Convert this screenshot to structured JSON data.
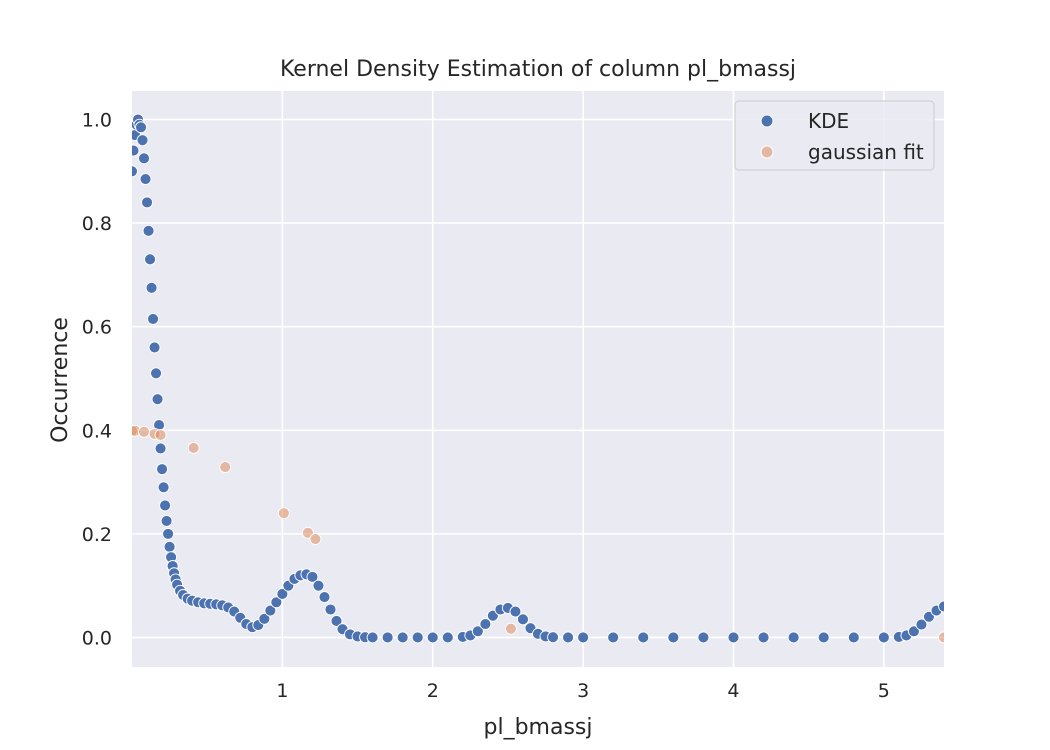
{
  "chart_data": {
    "type": "scatter",
    "title": "Kernel Density Estimation of column pl_bmassj",
    "xlabel": "pl_bmassj",
    "ylabel": "Occurrence",
    "xlim": [
      0,
      5.4
    ],
    "ylim": [
      -0.057,
      1.055
    ],
    "xticks": [
      1,
      2,
      3,
      4,
      5
    ],
    "yticks": [
      0.0,
      0.2,
      0.4,
      0.6,
      0.8,
      1.0
    ],
    "xtick_labels": [
      "1",
      "2",
      "3",
      "4",
      "5"
    ],
    "ytick_labels": [
      "0.0",
      "0.2",
      "0.4",
      "0.6",
      "0.8",
      "1.0"
    ],
    "grid": true,
    "legend_position": "top-right",
    "background_color": "#eaeaf2",
    "series": [
      {
        "name": "KDE",
        "color": "#4c72b0",
        "x": [
          0.0,
          0.01,
          0.02,
          0.03,
          0.04,
          0.05,
          0.06,
          0.07,
          0.08,
          0.09,
          0.1,
          0.11,
          0.12,
          0.13,
          0.14,
          0.15,
          0.16,
          0.17,
          0.18,
          0.19,
          0.2,
          0.21,
          0.22,
          0.23,
          0.24,
          0.25,
          0.26,
          0.27,
          0.28,
          0.29,
          0.3,
          0.32,
          0.34,
          0.37,
          0.4,
          0.44,
          0.48,
          0.52,
          0.56,
          0.6,
          0.64,
          0.68,
          0.72,
          0.76,
          0.8,
          0.84,
          0.88,
          0.92,
          0.96,
          1.0,
          1.04,
          1.08,
          1.12,
          1.16,
          1.2,
          1.24,
          1.28,
          1.32,
          1.36,
          1.4,
          1.45,
          1.5,
          1.55,
          1.6,
          1.7,
          1.8,
          1.9,
          2.0,
          2.1,
          2.2,
          2.25,
          2.3,
          2.35,
          2.4,
          2.45,
          2.5,
          2.55,
          2.6,
          2.65,
          2.7,
          2.75,
          2.8,
          2.9,
          3.0,
          3.2,
          3.4,
          3.6,
          3.8,
          4.0,
          4.2,
          4.4,
          4.6,
          4.8,
          5.0,
          5.1,
          5.15,
          5.2,
          5.25,
          5.3,
          5.35,
          5.4
        ],
        "y": [
          0.9,
          0.94,
          0.97,
          0.99,
          1.0,
          0.99,
          0.985,
          0.96,
          0.925,
          0.885,
          0.84,
          0.785,
          0.73,
          0.675,
          0.615,
          0.56,
          0.51,
          0.46,
          0.41,
          0.365,
          0.325,
          0.29,
          0.255,
          0.225,
          0.2,
          0.175,
          0.155,
          0.138,
          0.124,
          0.112,
          0.102,
          0.09,
          0.082,
          0.075,
          0.071,
          0.068,
          0.066,
          0.065,
          0.064,
          0.062,
          0.058,
          0.05,
          0.038,
          0.026,
          0.02,
          0.024,
          0.036,
          0.052,
          0.068,
          0.084,
          0.1,
          0.113,
          0.12,
          0.122,
          0.117,
          0.1,
          0.078,
          0.054,
          0.032,
          0.016,
          0.006,
          0.002,
          0.0005,
          0.0,
          0.0,
          0.0,
          0.0,
          0.0,
          0.0,
          0.001,
          0.004,
          0.012,
          0.026,
          0.042,
          0.054,
          0.057,
          0.05,
          0.035,
          0.018,
          0.007,
          0.002,
          0.0005,
          0.0,
          0.0,
          0.0,
          0.0,
          0.0,
          0.0,
          0.0,
          0.0,
          0.0,
          0.0,
          0.0,
          0.0,
          0.001,
          0.004,
          0.012,
          0.025,
          0.04,
          0.052,
          0.06
        ]
      },
      {
        "name": "gaussian fit",
        "color": "#dd8452",
        "x": [
          0.0,
          0.02,
          0.08,
          0.15,
          0.19,
          0.41,
          0.62,
          1.01,
          1.17,
          1.22,
          2.52,
          5.4
        ],
        "y": [
          0.399,
          0.399,
          0.397,
          0.393,
          0.391,
          0.366,
          0.329,
          0.24,
          0.202,
          0.19,
          0.017,
          0.0
        ]
      }
    ]
  }
}
